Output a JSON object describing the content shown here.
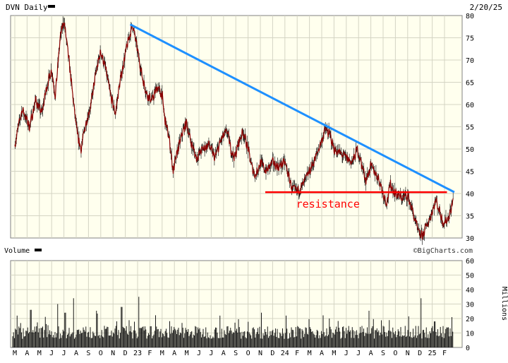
{
  "header": {
    "symbol_title": "DVN Daily",
    "date": "2/20/25"
  },
  "volume_panel": {
    "label": "Volume",
    "unit_label": "Millions",
    "watermark": "©BigCharts.com"
  },
  "colors": {
    "page_bg": "#ffffff",
    "plot_bg": "#ffffee",
    "grid": "#d4d4c4",
    "price_line": "#8b0000",
    "price_wick": "#000000",
    "trendline": "#1e90ff",
    "resistance": "#ff0000",
    "volume_bar": "#1a1a1a",
    "frame": "#808080",
    "text": "#000000"
  },
  "chart_data": [
    {
      "type": "line",
      "panel": "price",
      "title": "DVN Daily",
      "yrange": [
        30,
        80
      ],
      "yticks": [
        30,
        35,
        40,
        45,
        50,
        55,
        60,
        65,
        70,
        75,
        80
      ],
      "x_tick_labels": [
        "M",
        "A",
        "M",
        "J",
        "J",
        "A",
        "S",
        "O",
        "N",
        "D",
        "23",
        "F",
        "M",
        "A",
        "M",
        "J",
        "J",
        "A",
        "S",
        "O",
        "N",
        "D",
        "24",
        "F",
        "M",
        "A",
        "M",
        "J",
        "J",
        "A",
        "S",
        "O",
        "N",
        "D",
        "25",
        "F"
      ],
      "grid": true,
      "series": [
        {
          "style": "daily price bars",
          "points": [
            {
              "x": 0,
              "y": 51
            },
            {
              "x": 0.6,
              "y": 59
            },
            {
              "x": 1.2,
              "y": 55
            },
            {
              "x": 1.7,
              "y": 61
            },
            {
              "x": 2.2,
              "y": 58
            },
            {
              "x": 2.6,
              "y": 64
            },
            {
              "x": 3.0,
              "y": 68
            },
            {
              "x": 3.3,
              "y": 62
            },
            {
              "x": 3.7,
              "y": 75
            },
            {
              "x": 4.0,
              "y": 79
            },
            {
              "x": 4.4,
              "y": 70
            },
            {
              "x": 4.8,
              "y": 60
            },
            {
              "x": 5.1,
              "y": 53
            },
            {
              "x": 5.4,
              "y": 50
            },
            {
              "x": 5.8,
              "y": 56
            },
            {
              "x": 6.2,
              "y": 60
            },
            {
              "x": 6.6,
              "y": 67
            },
            {
              "x": 7.0,
              "y": 72
            },
            {
              "x": 7.4,
              "y": 68
            },
            {
              "x": 7.8,
              "y": 62
            },
            {
              "x": 8.2,
              "y": 58
            },
            {
              "x": 8.5,
              "y": 64
            },
            {
              "x": 8.9,
              "y": 70
            },
            {
              "x": 9.3,
              "y": 75
            },
            {
              "x": 9.6,
              "y": 78
            },
            {
              "x": 10.0,
              "y": 72
            },
            {
              "x": 10.4,
              "y": 66
            },
            {
              "x": 10.8,
              "y": 62
            },
            {
              "x": 11.2,
              "y": 61
            },
            {
              "x": 11.6,
              "y": 64
            },
            {
              "x": 12.0,
              "y": 62
            },
            {
              "x": 12.2,
              "y": 57
            },
            {
              "x": 12.6,
              "y": 52
            },
            {
              "x": 12.9,
              "y": 45
            },
            {
              "x": 13.3,
              "y": 50
            },
            {
              "x": 13.7,
              "y": 54
            },
            {
              "x": 14.0,
              "y": 56
            },
            {
              "x": 14.3,
              "y": 52
            },
            {
              "x": 14.8,
              "y": 48
            },
            {
              "x": 15.3,
              "y": 50
            },
            {
              "x": 15.8,
              "y": 51
            },
            {
              "x": 16.3,
              "y": 48
            },
            {
              "x": 16.8,
              "y": 52
            },
            {
              "x": 17.3,
              "y": 54
            },
            {
              "x": 17.6,
              "y": 50
            },
            {
              "x": 17.9,
              "y": 48
            },
            {
              "x": 18.3,
              "y": 52
            },
            {
              "x": 18.6,
              "y": 54
            },
            {
              "x": 19.0,
              "y": 50
            },
            {
              "x": 19.3,
              "y": 46
            },
            {
              "x": 19.6,
              "y": 44
            },
            {
              "x": 20.0,
              "y": 47
            },
            {
              "x": 20.5,
              "y": 45
            },
            {
              "x": 21.0,
              "y": 47
            },
            {
              "x": 21.5,
              "y": 46
            },
            {
              "x": 22.0,
              "y": 47
            },
            {
              "x": 22.3,
              "y": 44
            },
            {
              "x": 22.6,
              "y": 41
            },
            {
              "x": 23.0,
              "y": 40.5
            },
            {
              "x": 23.5,
              "y": 42
            },
            {
              "x": 24.0,
              "y": 45
            },
            {
              "x": 24.5,
              "y": 48
            },
            {
              "x": 25.0,
              "y": 52
            },
            {
              "x": 25.3,
              "y": 54.5
            },
            {
              "x": 25.7,
              "y": 53
            },
            {
              "x": 26.0,
              "y": 50
            },
            {
              "x": 26.5,
              "y": 49
            },
            {
              "x": 27.0,
              "y": 48
            },
            {
              "x": 27.5,
              "y": 47
            },
            {
              "x": 27.9,
              "y": 50
            },
            {
              "x": 28.3,
              "y": 46
            },
            {
              "x": 28.6,
              "y": 43
            },
            {
              "x": 29.0,
              "y": 46
            },
            {
              "x": 29.3,
              "y": 45
            },
            {
              "x": 29.7,
              "y": 43
            },
            {
              "x": 30.0,
              "y": 40
            },
            {
              "x": 30.3,
              "y": 38
            },
            {
              "x": 30.6,
              "y": 42
            },
            {
              "x": 31.0,
              "y": 40
            },
            {
              "x": 31.5,
              "y": 39
            },
            {
              "x": 32.0,
              "y": 39.5
            },
            {
              "x": 32.3,
              "y": 37
            },
            {
              "x": 32.6,
              "y": 34
            },
            {
              "x": 32.9,
              "y": 31
            },
            {
              "x": 33.2,
              "y": 30.5
            },
            {
              "x": 33.6,
              "y": 33
            },
            {
              "x": 34.0,
              "y": 36
            },
            {
              "x": 34.3,
              "y": 38.5
            },
            {
              "x": 34.6,
              "y": 36
            },
            {
              "x": 34.9,
              "y": 33.5
            },
            {
              "x": 35.2,
              "y": 34
            },
            {
              "x": 35.5,
              "y": 36
            },
            {
              "x": 35.7,
              "y": 38.5
            }
          ]
        }
      ],
      "annotations": [
        {
          "type": "trendline",
          "from": {
            "x": 9.4,
            "y": 78
          },
          "to": {
            "x": 35.8,
            "y": 40.3
          }
        },
        {
          "type": "horizontal",
          "label": "resistance",
          "y": 40.3,
          "x_from": 20.4,
          "x_to": 35.2
        }
      ]
    },
    {
      "type": "bar",
      "panel": "volume",
      "ylabel": "Millions",
      "yrange": [
        0,
        60
      ],
      "yticks": [
        0,
        10,
        20,
        30,
        40,
        50,
        60
      ],
      "x_tick_labels": [
        "M",
        "A",
        "M",
        "J",
        "J",
        "A",
        "S",
        "O",
        "N",
        "D",
        "23",
        "F",
        "M",
        "A",
        "M",
        "J",
        "J",
        "A",
        "S",
        "O",
        "N",
        "D",
        "24",
        "F",
        "M",
        "A",
        "M",
        "J",
        "J",
        "A",
        "S",
        "O",
        "N",
        "D",
        "25",
        "F"
      ],
      "series": [
        {
          "style": "daily volume bars",
          "spikes": [
            {
              "x": 0.2,
              "y": 22
            },
            {
              "x": 1.3,
              "y": 26
            },
            {
              "x": 3.5,
              "y": 30
            },
            {
              "x": 4.1,
              "y": 24
            },
            {
              "x": 4.8,
              "y": 34
            },
            {
              "x": 8.7,
              "y": 28
            },
            {
              "x": 10.1,
              "y": 35
            },
            {
              "x": 16.7,
              "y": 22
            },
            {
              "x": 20.1,
              "y": 24
            },
            {
              "x": 22.1,
              "y": 22
            },
            {
              "x": 25.6,
              "y": 20
            },
            {
              "x": 33.1,
              "y": 34
            },
            {
              "x": 34.2,
              "y": 18
            },
            {
              "x": 35.6,
              "y": 21
            }
          ]
        }
      ]
    }
  ]
}
